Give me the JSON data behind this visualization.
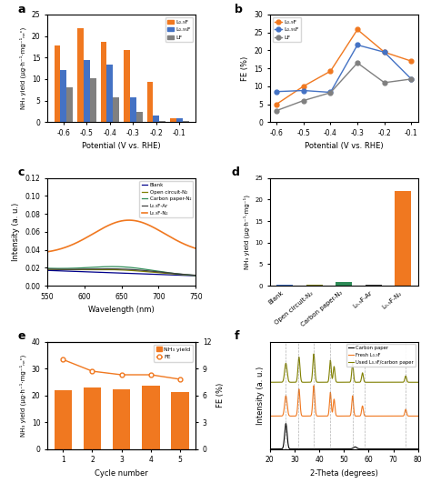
{
  "panel_a": {
    "potentials": [
      -0.6,
      -0.5,
      -0.4,
      -0.3,
      -0.2,
      -0.1
    ],
    "L09F": [
      17.8,
      21.8,
      18.7,
      16.8,
      9.3,
      0.9
    ],
    "L095F": [
      12.0,
      14.4,
      13.4,
      5.8,
      1.5,
      0.8
    ],
    "LF": [
      8.0,
      10.1,
      5.8,
      2.4,
      0.3,
      0.3
    ],
    "colors": [
      "#F07820",
      "#4472C4",
      "#808080"
    ],
    "ylabel": "NH₃ yield (μg·h⁻¹·mg⁻¹ₙₑᶜ)",
    "xlabel": "Potential (V vs. RHE)",
    "ylim": [
      0,
      25
    ],
    "labels": [
      "L₀.₉F",
      "L₀.₉₅F",
      "LF"
    ]
  },
  "panel_b": {
    "potentials": [
      -0.6,
      -0.5,
      -0.4,
      -0.3,
      -0.2,
      -0.1
    ],
    "L09F": [
      5.0,
      10.0,
      14.2,
      25.8,
      19.5,
      17.0
    ],
    "L095F": [
      8.5,
      8.8,
      8.3,
      21.5,
      19.5,
      12.0
    ],
    "LF": [
      3.2,
      6.0,
      8.2,
      16.5,
      11.0,
      12.0
    ],
    "colors": [
      "#F07820",
      "#4472C4",
      "#808080"
    ],
    "ylabel": "FE (%)",
    "xlabel": "Potential (V vs. RHE)",
    "ylim": [
      0,
      30
    ],
    "labels": [
      "L₀.₉F",
      "L₀.₉₅F",
      "LF"
    ]
  },
  "panel_c": {
    "colors": [
      "#00008B",
      "#808000",
      "#2E8B57",
      "#404040",
      "#F07820"
    ],
    "ylabel": "Intensity (a. u.)",
    "xlabel": "Wavelength (nm)",
    "ylim": [
      0.0,
      0.12
    ],
    "labels": [
      "Blank",
      "Open circuit-N₂",
      "Carbon paper-N₂",
      "L₀.₉F-Ar",
      "L₀.₉F-N₂"
    ]
  },
  "panel_d": {
    "categories": [
      "Blank",
      "Open circuit-N₂",
      "Carbon paper-N₂",
      "L₀.₉F-Ar",
      "L₀.₉F-N₂"
    ],
    "values": [
      0.15,
      0.3,
      0.8,
      0.2,
      22.0
    ],
    "colors": [
      "#4472C4",
      "#808000",
      "#2E8B57",
      "#404040",
      "#F07820"
    ],
    "ylabel": "NH₃ yield (μg·h⁻¹·mg⁻¹)",
    "ylim": [
      0,
      25
    ]
  },
  "panel_e": {
    "cycles": [
      1,
      2,
      3,
      4,
      5
    ],
    "nh3_yield": [
      21.8,
      23.0,
      22.3,
      23.5,
      21.3
    ],
    "fe": [
      10.0,
      8.7,
      8.3,
      8.3,
      7.8
    ],
    "bar_color": "#F07820",
    "line_color": "#F07820",
    "ylabel_left": "NH₃ yield (μg·h⁻¹·mg⁻¹ₙₑᶜ)",
    "ylabel_right": "FE (%)",
    "xlabel": "Cycle number",
    "ylim_left": [
      0,
      40
    ],
    "ylim_right": [
      0,
      12
    ],
    "yticks_right": [
      0,
      3,
      6,
      9,
      12
    ]
  },
  "panel_f": {
    "colors": [
      "#808000",
      "#F07820",
      "#000000"
    ],
    "labels": [
      "Used L₀.₉F/carbon paper",
      "Fresh L₀.₉F",
      "Carbon paper"
    ],
    "xlabel": "2-Theta (degrees)",
    "ylabel": "Intensity (a. u.)",
    "xlim": [
      20,
      80
    ],
    "vlines": [
      26.5,
      31.5,
      37.8,
      44.5,
      53.5,
      58.5,
      75.0
    ]
  }
}
